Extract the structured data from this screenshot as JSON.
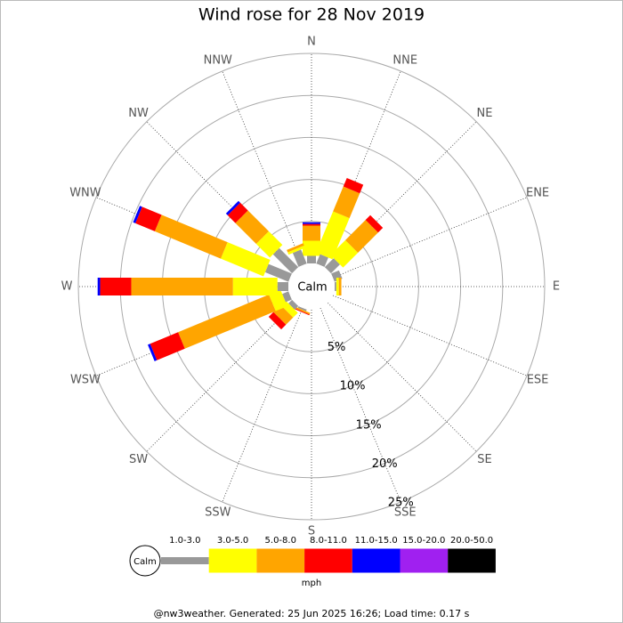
{
  "chart_data": {
    "type": "windrose",
    "title": "Wind rose for 28 Nov 2019",
    "directions": [
      "N",
      "NNE",
      "NE",
      "ENE",
      "E",
      "ESE",
      "SE",
      "SSE",
      "S",
      "SSW",
      "SW",
      "WSW",
      "W",
      "WNW",
      "NW",
      "NNW"
    ],
    "calm_label": "Calm",
    "rlim": [
      0,
      25
    ],
    "rticks": [
      {
        "value": 5,
        "label": "5%"
      },
      {
        "value": 10,
        "label": "10%"
      },
      {
        "value": 15,
        "label": "15%"
      },
      {
        "value": 20,
        "label": "20%"
      },
      {
        "value": 25,
        "label": "25%"
      }
    ],
    "legend_unit": "mph",
    "series": [
      {
        "name": "1.0-3.0",
        "color": "#999999",
        "values": [
          0.9,
          1.2,
          1.5,
          1.0,
          0.2,
          0,
          0,
          0,
          0,
          0.2,
          0.6,
          0.8,
          1.3,
          3.0,
          3.2,
          1.8
        ]
      },
      {
        "name": "3.0-5.0",
        "color": "#ffff00",
        "values": [
          1.8,
          5.3,
          2.5,
          0,
          0.3,
          0,
          0,
          0,
          0,
          0,
          0.8,
          1.5,
          5.3,
          5.5,
          2.3,
          0.3
        ]
      },
      {
        "name": "5.0-8.0",
        "color": "#ffa500",
        "values": [
          1.8,
          3.2,
          3.4,
          0,
          0.3,
          0,
          0,
          0,
          0,
          0.2,
          1.2,
          11.7,
          12.1,
          8.5,
          3.5,
          0.3
        ]
      },
      {
        "name": "8.0-11.0",
        "color": "#ff0000",
        "values": [
          0.2,
          1.1,
          0.8,
          0,
          0,
          0,
          0,
          0,
          0,
          0.1,
          0.8,
          3.6,
          3.7,
          2.5,
          1.3,
          0
        ]
      },
      {
        "name": "11.0-15.0",
        "color": "#0000ff",
        "values": [
          0.2,
          0,
          0,
          0,
          0,
          0,
          0,
          0,
          0,
          0,
          0,
          0.3,
          0.3,
          0.3,
          0.3,
          0
        ]
      },
      {
        "name": "15.0-20.0",
        "color": "#a020f0",
        "values": [
          0,
          0,
          0,
          0,
          0,
          0,
          0,
          0,
          0,
          0,
          0,
          0,
          0,
          0,
          0,
          0
        ]
      },
      {
        "name": "20.0-50.0",
        "color": "#000000",
        "values": [
          0,
          0,
          0,
          0,
          0,
          0,
          0,
          0,
          0,
          0,
          0,
          0,
          0,
          0,
          0,
          0
        ]
      }
    ],
    "footer": "@nw3weather. Generated: 25 Jun 2025 16:26; Load time: 0.17 s"
  }
}
